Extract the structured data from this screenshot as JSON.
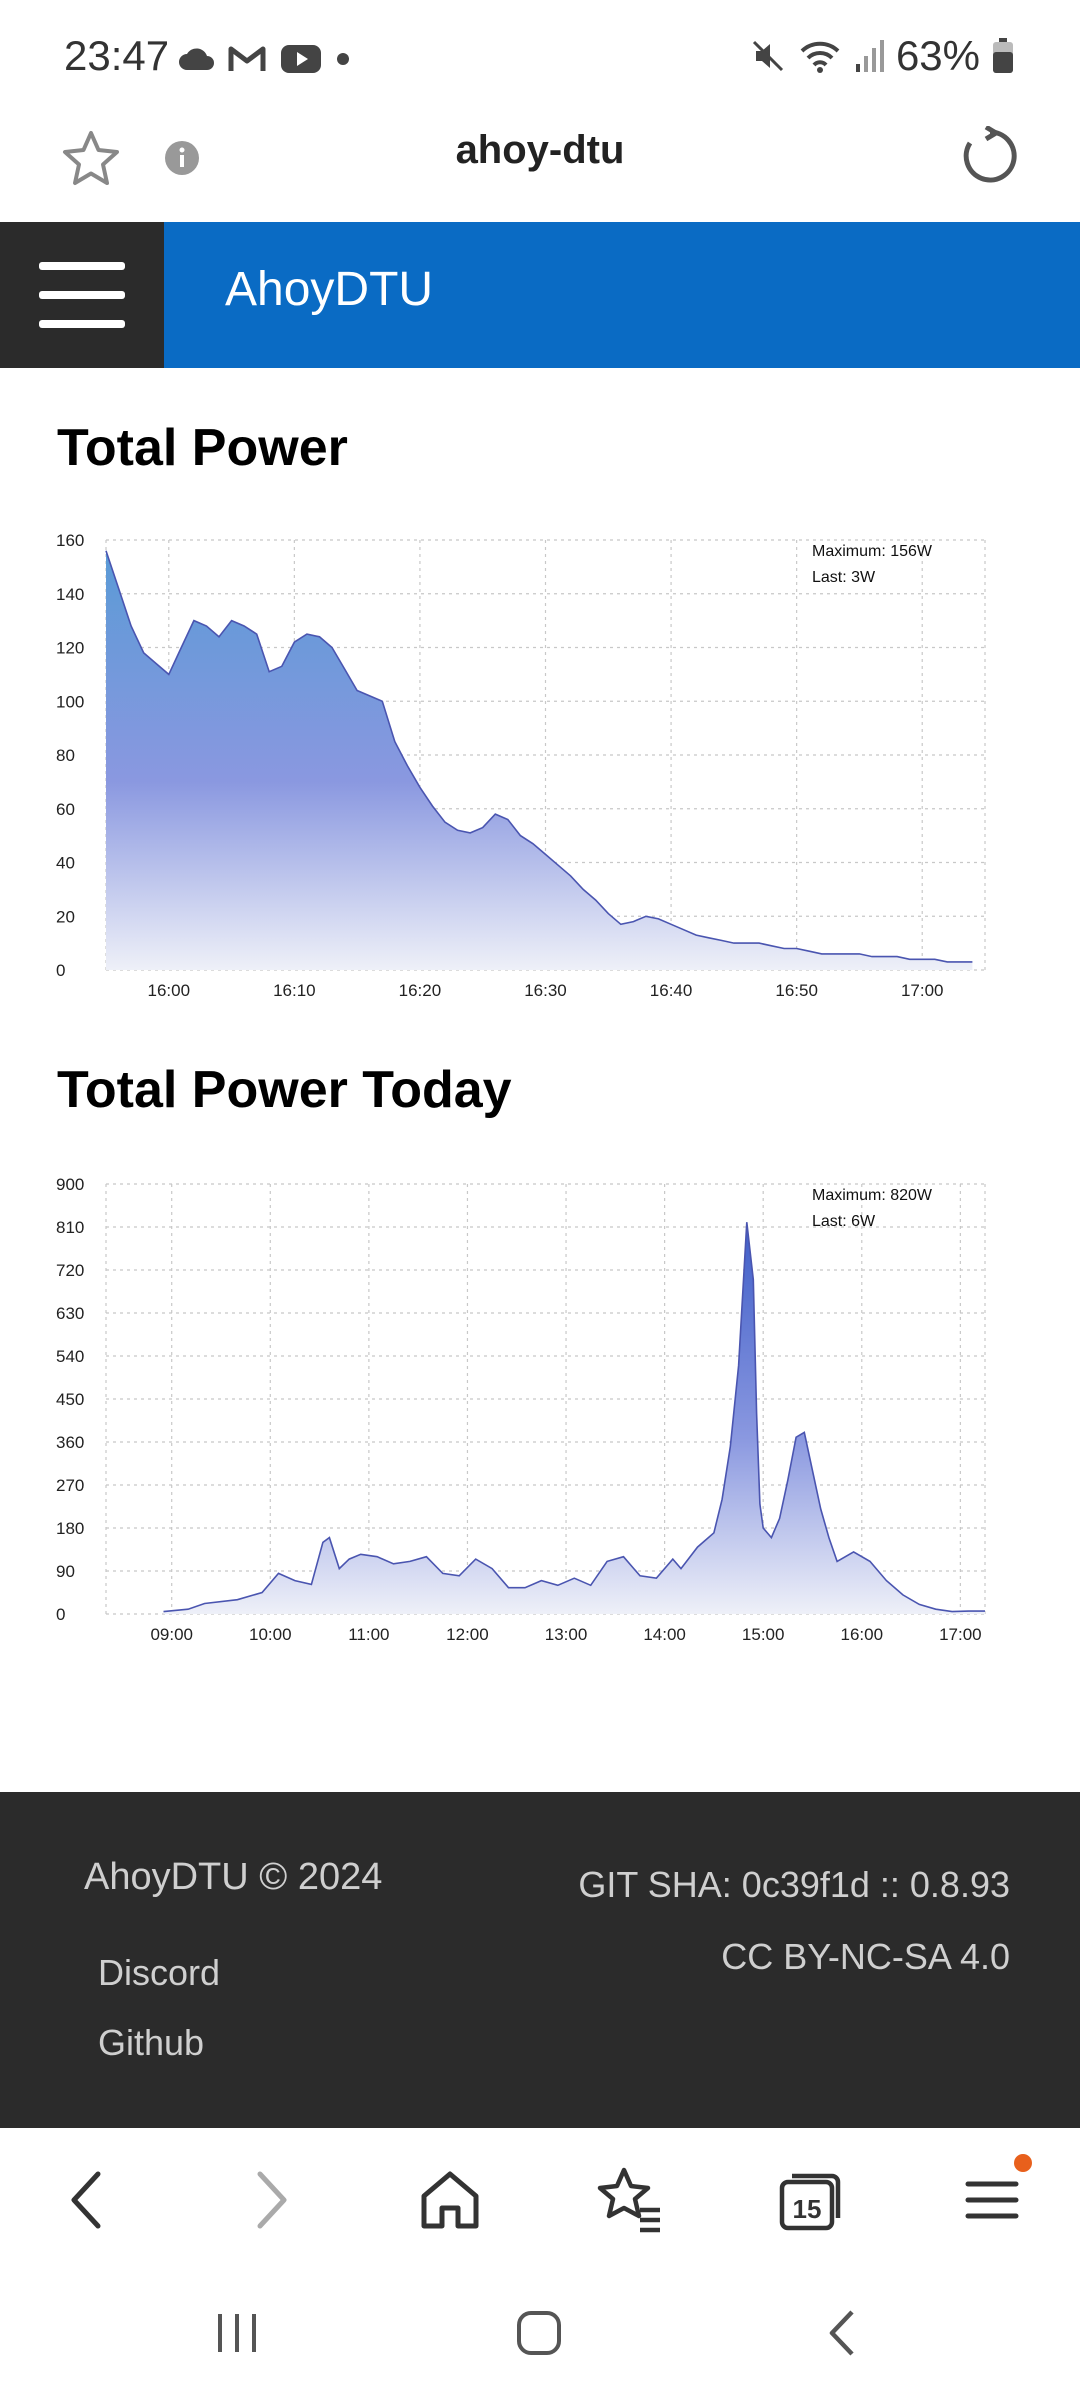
{
  "status_bar": {
    "time": "23:47",
    "battery": "63%"
  },
  "browser": {
    "url_title": "ahoy-dtu",
    "tab_count": "15"
  },
  "app": {
    "title": "AhoyDTU"
  },
  "sections": {
    "live_title": "Total Power",
    "today_title": "Total Power Today"
  },
  "chart_data": [
    {
      "type": "area",
      "title": "Total Power",
      "ylim": [
        0,
        160
      ],
      "y_ticks": [
        "0",
        "20",
        "40",
        "60",
        "80",
        "100",
        "120",
        "140",
        "160"
      ],
      "x_ticks": [
        "16:00",
        "16:10",
        "16:20",
        "16:30",
        "16:40",
        "16:50",
        "17:00"
      ],
      "annotation_max": "Maximum: 156W",
      "annotation_last": "Last: 3W",
      "grid": true,
      "series": [
        {
          "x": [
            "15:55",
            "15:56",
            "15:57",
            "15:58",
            "15:59",
            "16:00",
            "16:01",
            "16:02",
            "16:03",
            "16:04",
            "16:05",
            "16:06",
            "16:07",
            "16:08",
            "16:09",
            "16:10",
            "16:11",
            "16:12",
            "16:13",
            "16:14",
            "16:15",
            "16:16",
            "16:17",
            "16:18",
            "16:19",
            "16:20",
            "16:21",
            "16:22",
            "16:23",
            "16:24",
            "16:25",
            "16:26",
            "16:27",
            "16:28",
            "16:29",
            "16:30",
            "16:31",
            "16:32",
            "16:33",
            "16:34",
            "16:35",
            "16:36",
            "16:37",
            "16:38",
            "16:39",
            "16:40",
            "16:41",
            "16:42",
            "16:43",
            "16:44",
            "16:45",
            "16:46",
            "16:47",
            "16:48",
            "16:49",
            "16:50",
            "16:51",
            "16:52",
            "16:53",
            "16:54",
            "16:55",
            "16:56",
            "16:57",
            "16:58",
            "16:59",
            "17:00",
            "17:01",
            "17:02",
            "17:03",
            "17:04"
          ],
          "y": [
            156,
            142,
            128,
            118,
            114,
            110,
            120,
            130,
            128,
            124,
            130,
            128,
            125,
            111,
            113,
            122,
            125,
            124,
            120,
            112,
            104,
            102,
            100,
            85,
            76,
            68,
            61,
            55,
            52,
            51,
            53,
            58,
            56,
            50,
            47,
            43,
            39,
            35,
            30,
            26,
            21,
            17,
            18,
            20,
            19,
            17,
            15,
            13,
            12,
            11,
            10,
            10,
            10,
            9,
            8,
            8,
            7,
            6,
            6,
            6,
            6,
            5,
            5,
            5,
            4,
            4,
            4,
            3,
            3,
            3
          ]
        }
      ]
    },
    {
      "type": "area",
      "title": "Total Power Today",
      "ylim": [
        0,
        900
      ],
      "y_ticks": [
        "0",
        "90",
        "180",
        "270",
        "360",
        "450",
        "540",
        "630",
        "720",
        "810",
        "900"
      ],
      "x_ticks": [
        "09:00",
        "10:00",
        "11:00",
        "12:00",
        "13:00",
        "14:00",
        "15:00",
        "16:00",
        "17:00"
      ],
      "annotation_max": "Maximum: 820W",
      "annotation_last": "Last: 6W",
      "grid": true,
      "series": [
        {
          "x": [
            "08:55",
            "09:10",
            "09:20",
            "09:40",
            "09:55",
            "10:05",
            "10:15",
            "10:25",
            "10:32",
            "10:36",
            "10:42",
            "10:48",
            "10:55",
            "11:05",
            "11:15",
            "11:25",
            "11:35",
            "11:45",
            "11:55",
            "12:05",
            "12:15",
            "12:25",
            "12:35",
            "12:45",
            "12:55",
            "13:05",
            "13:15",
            "13:25",
            "13:35",
            "13:45",
            "13:55",
            "14:05",
            "14:10",
            "14:20",
            "14:30",
            "14:35",
            "14:40",
            "14:45",
            "14:50",
            "14:54",
            "14:56",
            "14:58",
            "15:00",
            "15:05",
            "15:10",
            "15:15",
            "15:20",
            "15:25",
            "15:30",
            "15:35",
            "15:40",
            "15:45",
            "15:55",
            "16:05",
            "16:15",
            "16:25",
            "16:35",
            "16:45",
            "16:55",
            "17:05",
            "17:15"
          ],
          "y": [
            5,
            10,
            22,
            30,
            45,
            85,
            70,
            62,
            150,
            160,
            95,
            115,
            125,
            120,
            105,
            110,
            120,
            85,
            80,
            115,
            95,
            55,
            55,
            70,
            60,
            75,
            60,
            110,
            120,
            80,
            75,
            115,
            95,
            140,
            170,
            240,
            350,
            520,
            820,
            700,
            420,
            230,
            180,
            160,
            200,
            280,
            370,
            380,
            300,
            220,
            160,
            110,
            130,
            110,
            70,
            40,
            20,
            10,
            5,
            6,
            6
          ]
        }
      ]
    }
  ],
  "footer": {
    "copyright": "AhoyDTU © 2024",
    "links": [
      "Discord",
      "Github"
    ],
    "git_sha": "GIT SHA: 0c39f1d :: 0.8.93",
    "license": "CC BY-NC-SA 4.0"
  }
}
